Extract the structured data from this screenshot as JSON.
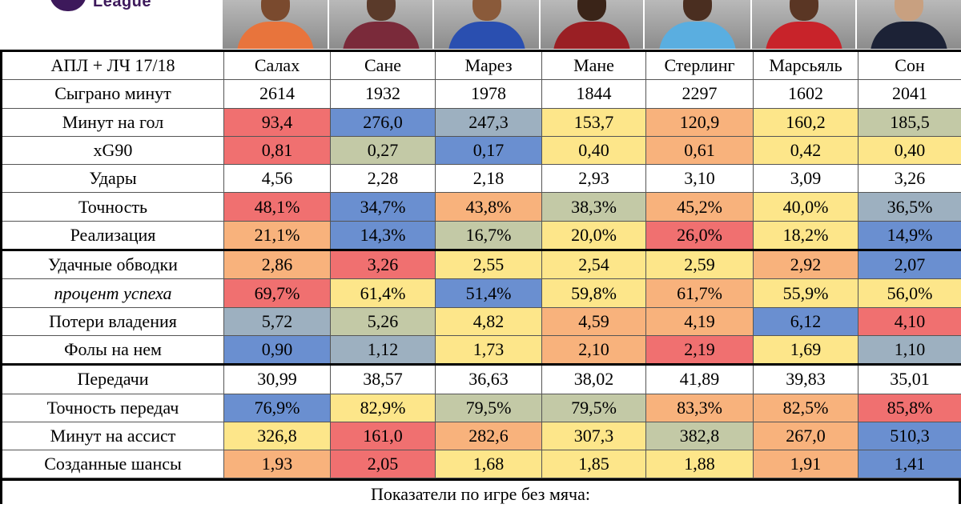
{
  "logo": {
    "text": "League"
  },
  "header": {
    "label": "АПЛ + ЛЧ 17/18"
  },
  "players": [
    {
      "name": "Салах",
      "shirt": "#e8743c",
      "face": "#7a4a2e"
    },
    {
      "name": "Сане",
      "shirt": "#7a2a3a",
      "face": "#5a3a2a"
    },
    {
      "name": "Марез",
      "shirt": "#2a4fb0",
      "face": "#8a5a3a"
    },
    {
      "name": "Мане",
      "shirt": "#9a1f24",
      "face": "#3a2418"
    },
    {
      "name": "Стерлинг",
      "shirt": "#5aaee0",
      "face": "#4a2e20"
    },
    {
      "name": "Марсьяль",
      "shirt": "#c8232a",
      "face": "#5a3624"
    },
    {
      "name": "Сон",
      "shirt": "#1c2236",
      "face": "#c8a080"
    }
  ],
  "palette": {
    "red": "#f07070",
    "orange": "#f8b27c",
    "yellow": "#fde68a",
    "sage": "#c3c9a6",
    "slate": "#9db0c0",
    "blue": "#6a8fd0",
    "white": "#ffffff"
  },
  "rows": [
    {
      "label": "Сыграно минут",
      "values": [
        "2614",
        "1932",
        "1978",
        "1844",
        "2297",
        "1602",
        "2041"
      ],
      "colors": [
        "white",
        "white",
        "white",
        "white",
        "white",
        "white",
        "white"
      ]
    },
    {
      "label": "Минут на гол",
      "values": [
        "93,4",
        "276,0",
        "247,3",
        "153,7",
        "120,9",
        "160,2",
        "185,5"
      ],
      "colors": [
        "red",
        "blue",
        "slate",
        "yellow",
        "orange",
        "yellow",
        "sage"
      ]
    },
    {
      "label": "xG90",
      "values": [
        "0,81",
        "0,27",
        "0,17",
        "0,40",
        "0,61",
        "0,42",
        "0,40"
      ],
      "colors": [
        "red",
        "sage",
        "blue",
        "yellow",
        "orange",
        "yellow",
        "yellow"
      ]
    },
    {
      "label": "Удары",
      "values": [
        "4,56",
        "2,28",
        "2,18",
        "2,93",
        "3,10",
        "3,09",
        "3,26"
      ],
      "colors": [
        "white",
        "white",
        "white",
        "white",
        "white",
        "white",
        "white"
      ]
    },
    {
      "label": "Точность",
      "values": [
        "48,1%",
        "34,7%",
        "43,8%",
        "38,3%",
        "45,2%",
        "40,0%",
        "36,5%"
      ],
      "colors": [
        "red",
        "blue",
        "orange",
        "sage",
        "orange",
        "yellow",
        "slate"
      ]
    },
    {
      "label": "Реализация",
      "values": [
        "21,1%",
        "14,3%",
        "16,7%",
        "20,0%",
        "26,0%",
        "18,2%",
        "14,9%"
      ],
      "colors": [
        "orange",
        "blue",
        "sage",
        "yellow",
        "red",
        "yellow",
        "blue"
      ]
    },
    {
      "label": "Удачные обводки",
      "values": [
        "2,86",
        "3,26",
        "2,55",
        "2,54",
        "2,59",
        "2,92",
        "2,07"
      ],
      "colors": [
        "orange",
        "red",
        "yellow",
        "yellow",
        "yellow",
        "orange",
        "blue"
      ],
      "group_start": true
    },
    {
      "label": "процент успеха",
      "italic": true,
      "values": [
        "69,7%",
        "61,4%",
        "51,4%",
        "59,8%",
        "61,7%",
        "55,9%",
        "56,0%"
      ],
      "colors": [
        "red",
        "yellow",
        "blue",
        "yellow",
        "orange",
        "yellow",
        "yellow"
      ]
    },
    {
      "label": "Потери владения",
      "values": [
        "5,72",
        "5,26",
        "4,82",
        "4,59",
        "4,19",
        "6,12",
        "4,10"
      ],
      "colors": [
        "slate",
        "sage",
        "yellow",
        "orange",
        "orange",
        "blue",
        "red"
      ]
    },
    {
      "label": "Фолы на нем",
      "values": [
        "0,90",
        "1,12",
        "1,73",
        "2,10",
        "2,19",
        "1,69",
        "1,10"
      ],
      "colors": [
        "blue",
        "slate",
        "yellow",
        "orange",
        "red",
        "yellow",
        "slate"
      ]
    },
    {
      "label": "Передачи",
      "values": [
        "30,99",
        "38,57",
        "36,63",
        "38,02",
        "41,89",
        "39,83",
        "35,01"
      ],
      "colors": [
        "white",
        "white",
        "white",
        "white",
        "white",
        "white",
        "white"
      ],
      "group_start": true
    },
    {
      "label": "Точность передач",
      "values": [
        "76,9%",
        "82,9%",
        "79,5%",
        "79,5%",
        "83,3%",
        "82,5%",
        "85,8%"
      ],
      "colors": [
        "blue",
        "yellow",
        "sage",
        "sage",
        "orange",
        "orange",
        "red"
      ]
    },
    {
      "label": "Минут на ассист",
      "values": [
        "326,8",
        "161,0",
        "282,6",
        "307,3",
        "382,8",
        "267,0",
        "510,3"
      ],
      "colors": [
        "yellow",
        "red",
        "orange",
        "yellow",
        "sage",
        "orange",
        "blue"
      ]
    },
    {
      "label": "Созданные шансы",
      "values": [
        "1,93",
        "2,05",
        "1,68",
        "1,85",
        "1,88",
        "1,91",
        "1,41"
      ],
      "colors": [
        "orange",
        "red",
        "yellow",
        "yellow",
        "yellow",
        "orange",
        "blue"
      ]
    }
  ],
  "footer": {
    "text": "Показатели по игре без мяча:"
  },
  "chart_data": {
    "type": "table",
    "columns": [
      "Салах",
      "Сане",
      "Марез",
      "Мане",
      "Стерлинг",
      "Марсьяль",
      "Сон"
    ],
    "title": "АПЛ + ЛЧ 17/18",
    "rows": [
      {
        "metric": "Сыграно минут",
        "values": [
          2614,
          1932,
          1978,
          1844,
          2297,
          1602,
          2041
        ]
      },
      {
        "metric": "Минут на гол",
        "values": [
          93.4,
          276.0,
          247.3,
          153.7,
          120.9,
          160.2,
          185.5
        ]
      },
      {
        "metric": "xG90",
        "values": [
          0.81,
          0.27,
          0.17,
          0.4,
          0.61,
          0.42,
          0.4
        ]
      },
      {
        "metric": "Удары",
        "values": [
          4.56,
          2.28,
          2.18,
          2.93,
          3.1,
          3.09,
          3.26
        ]
      },
      {
        "metric": "Точность",
        "values": [
          48.1,
          34.7,
          43.8,
          38.3,
          45.2,
          40.0,
          36.5
        ]
      },
      {
        "metric": "Реализация",
        "values": [
          21.1,
          14.3,
          16.7,
          20.0,
          26.0,
          18.2,
          14.9
        ]
      },
      {
        "metric": "Удачные обводки",
        "values": [
          2.86,
          3.26,
          2.55,
          2.54,
          2.59,
          2.92,
          2.07
        ]
      },
      {
        "metric": "процент успеха",
        "values": [
          69.7,
          61.4,
          51.4,
          59.8,
          61.7,
          55.9,
          56.0
        ]
      },
      {
        "metric": "Потери владения",
        "values": [
          5.72,
          5.26,
          4.82,
          4.59,
          4.19,
          6.12,
          4.1
        ]
      },
      {
        "metric": "Фолы на нем",
        "values": [
          0.9,
          1.12,
          1.73,
          2.1,
          2.19,
          1.69,
          1.1
        ]
      },
      {
        "metric": "Передачи",
        "values": [
          30.99,
          38.57,
          36.63,
          38.02,
          41.89,
          39.83,
          35.01
        ]
      },
      {
        "metric": "Точность передач",
        "values": [
          76.9,
          82.9,
          79.5,
          79.5,
          83.3,
          82.5,
          85.8
        ]
      },
      {
        "metric": "Минут на ассист",
        "values": [
          326.8,
          161.0,
          282.6,
          307.3,
          382.8,
          267.0,
          510.3
        ]
      },
      {
        "metric": "Созданные шансы",
        "values": [
          1.93,
          2.05,
          1.68,
          1.85,
          1.88,
          1.91,
          1.41
        ]
      }
    ]
  }
}
